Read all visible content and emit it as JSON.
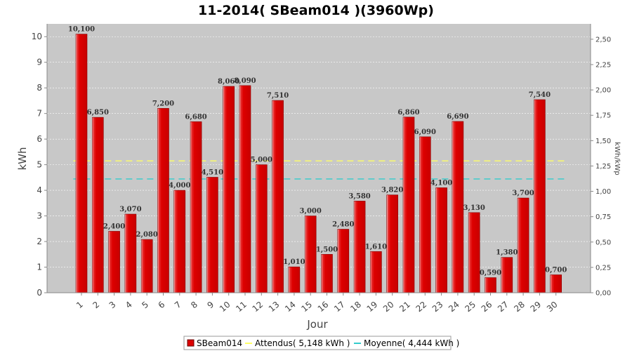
{
  "chart_data": {
    "type": "bar",
    "title": "11-2014( SBeam014 )(3960Wp)",
    "xlabel": "Jour",
    "ylabel": "kWh",
    "ylabel_right": "kWh/kWp",
    "ylim": [
      0,
      10.5
    ],
    "ylim_right": [
      0,
      2.651515
    ],
    "yticks": [
      "0",
      "1",
      "2",
      "3",
      "4",
      "5",
      "6",
      "7",
      "8",
      "9",
      "10"
    ],
    "yticks_right": [
      "0,00",
      "0,25",
      "0,50",
      "0,75",
      "1,00",
      "1,25",
      "1,50",
      "1,75",
      "2,00",
      "2,25",
      "2,50"
    ],
    "categories": [
      "1",
      "2",
      "3",
      "4",
      "5",
      "6",
      "7",
      "8",
      "9",
      "10",
      "11",
      "12",
      "13",
      "14",
      "15",
      "16",
      "17",
      "18",
      "19",
      "20",
      "21",
      "22",
      "23",
      "24",
      "25",
      "26",
      "27",
      "28",
      "29",
      "30"
    ],
    "series": [
      {
        "name": "SBeam014",
        "color": "#dd0000",
        "values": [
          10.1,
          6.85,
          2.4,
          3.07,
          2.08,
          7.2,
          4.0,
          6.68,
          4.51,
          8.06,
          8.09,
          5.0,
          7.51,
          1.01,
          3.0,
          1.5,
          2.48,
          3.58,
          1.61,
          3.82,
          6.86,
          6.09,
          4.1,
          6.69,
          3.13,
          0.59,
          1.38,
          3.7,
          7.54,
          0.7
        ],
        "labels": [
          "10,100",
          "6,850",
          "2,400",
          "3,070",
          "2,080",
          "7,200",
          "4,000",
          "6,680",
          "4,510",
          "8,060",
          "8,090",
          "5,000",
          "7,510",
          "1,010",
          "3,000",
          "1,500",
          "2,480",
          "3,580",
          "1,610",
          "3,820",
          "6,860",
          "6,090",
          "4,100",
          "6,690",
          "3,130",
          "0,590",
          "1,380",
          "3,700",
          "7,540",
          "0,700"
        ]
      }
    ],
    "reference_lines": [
      {
        "name": "Attendus( 5,148 kWh )",
        "value": 5.148,
        "color": "#ffff66",
        "style": "dashed"
      },
      {
        "name": "Moyenne( 4,444 kWh )",
        "value": 4.444,
        "color": "#33cccc",
        "style": "dashed"
      }
    ],
    "grid": true,
    "legend_position": "bottom",
    "plot_background": "#c8c8c8"
  }
}
